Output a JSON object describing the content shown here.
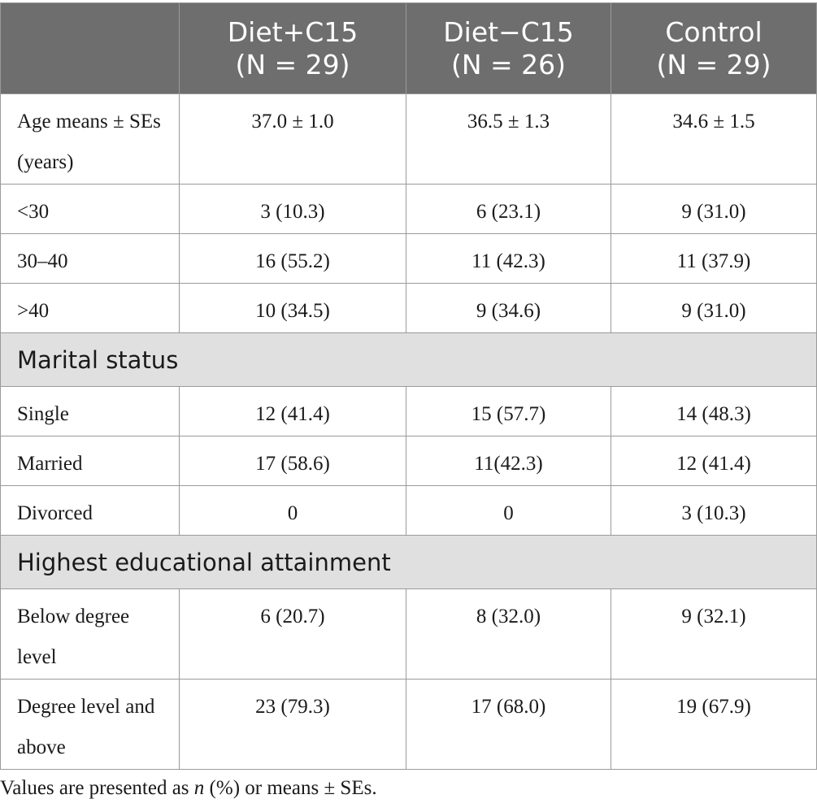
{
  "table": {
    "header": [
      "",
      {
        "name": "Diet+C15",
        "n_label": "(N = 29)"
      },
      {
        "name": "Diet−C15",
        "n_label": "(N = 26)"
      },
      {
        "name": "Control",
        "n_label": "(N = 29)"
      }
    ],
    "rows": [
      {
        "label": "Age means ± SEs (years)",
        "values": [
          "37.0 ± 1.0",
          "36.5 ± 1.3",
          "34.6 ± 1.5"
        ]
      },
      {
        "label": "<30",
        "values": [
          "3 (10.3)",
          "6 (23.1)",
          "9 (31.0)"
        ]
      },
      {
        "label": "30–40",
        "values": [
          "16 (55.2)",
          "11 (42.3)",
          "11 (37.9)"
        ]
      },
      {
        "label": ">40",
        "values": [
          "10 (34.5)",
          "9 (34.6)",
          "9 (31.0)"
        ]
      },
      {
        "section": "Marital status"
      },
      {
        "label": "Single",
        "values": [
          "12 (41.4)",
          "15 (57.7)",
          "14 (48.3)"
        ]
      },
      {
        "label": "Married",
        "values": [
          "17 (58.6)",
          "11(42.3)",
          "12 (41.4)"
        ]
      },
      {
        "label": "Divorced",
        "values": [
          "0",
          "0",
          "3 (10.3)"
        ]
      },
      {
        "section": "Highest educational attainment"
      },
      {
        "label": "Below degree level",
        "values": [
          "6 (20.7)",
          "8 (32.0)",
          "9 (32.1)"
        ]
      },
      {
        "label": "Degree level and above",
        "values": [
          "23 (79.3)",
          "17 (68.0)",
          "19 (67.9)"
        ]
      }
    ]
  },
  "footnote": {
    "prefix": "Values are presented as ",
    "italic": "n",
    "suffix": " (%) or means ± SEs."
  }
}
